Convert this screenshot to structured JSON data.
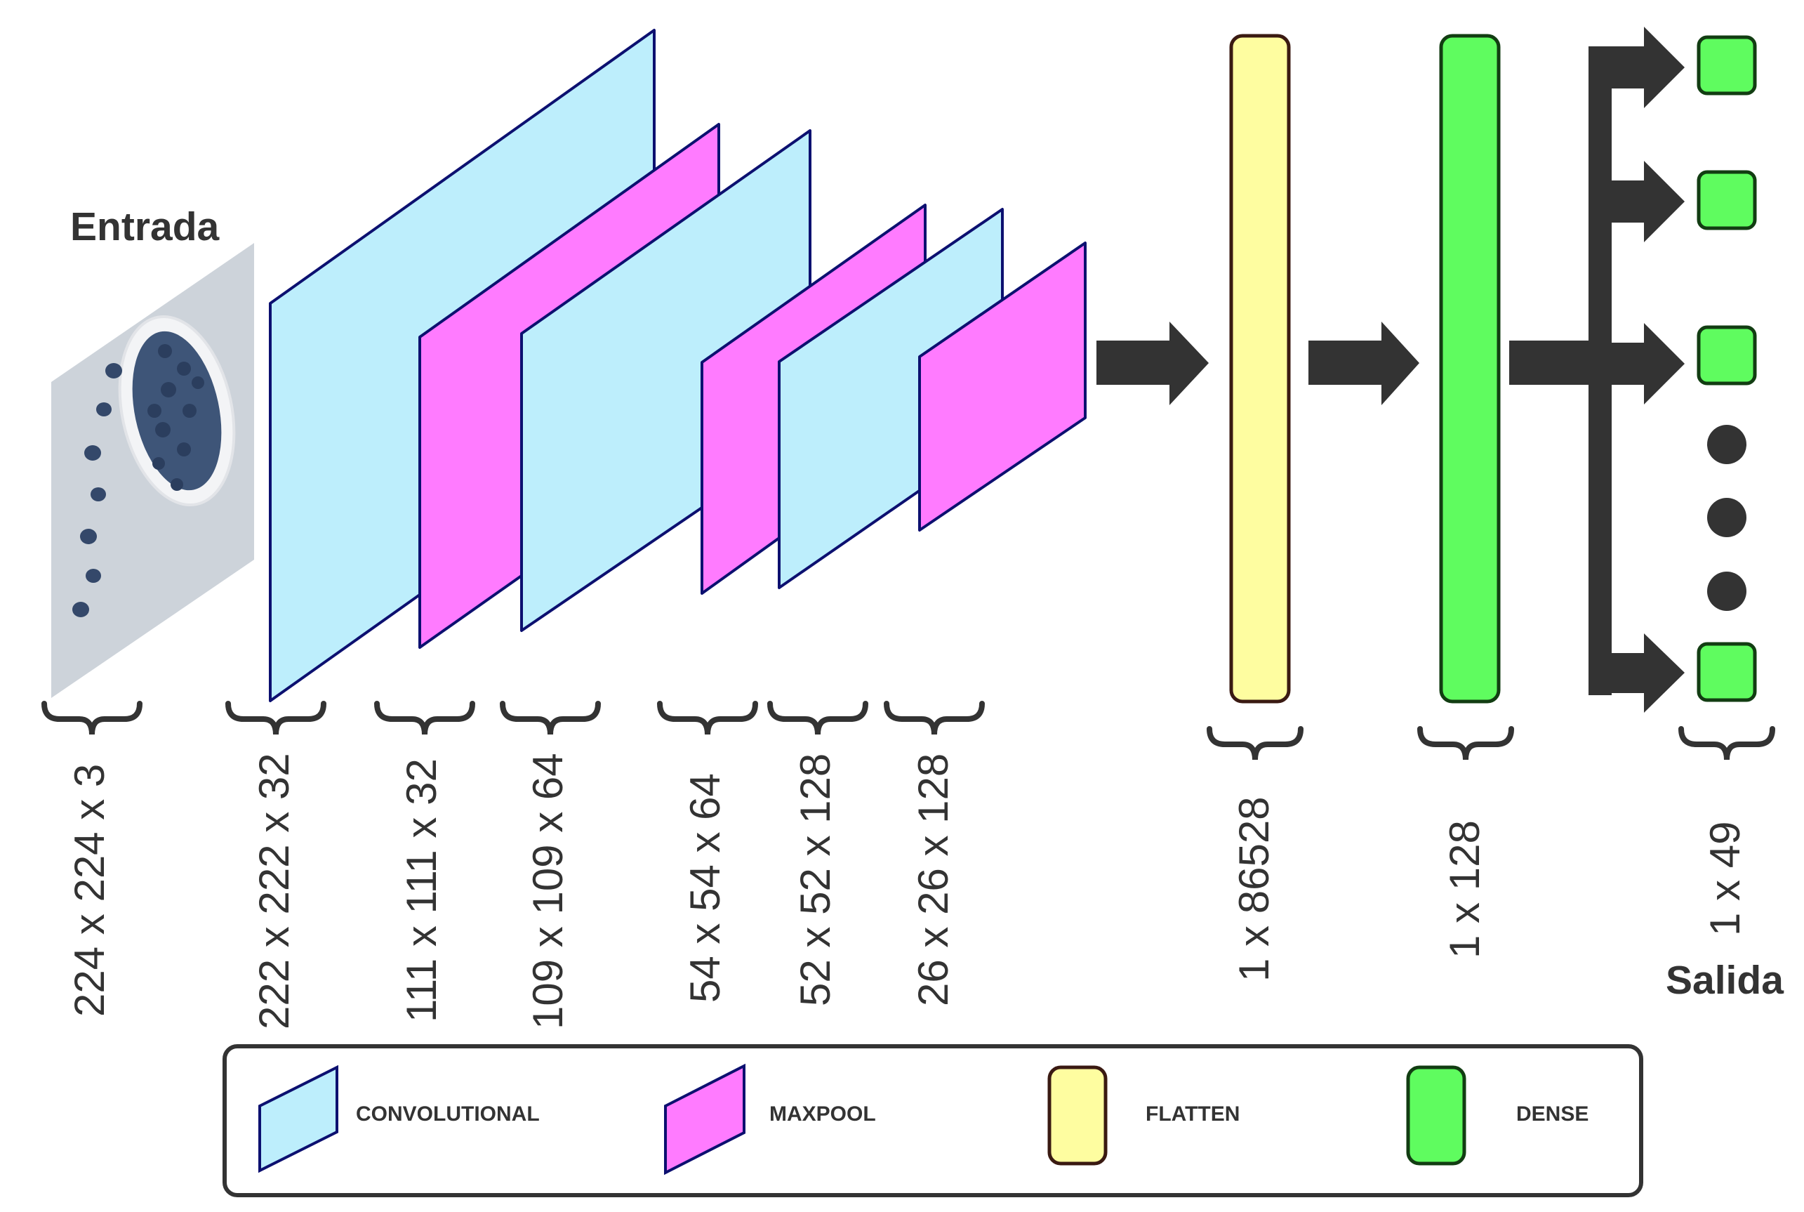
{
  "input_title": "Entrada",
  "output_title": "Salida",
  "dimensions": {
    "input": "224 x 224 x 3",
    "conv1": "222 x 222 x 32",
    "pool1": "111 x 111 x 32",
    "conv2": "109 x 109 x 64",
    "pool2": "54 x 54 x 64",
    "conv3": "52 x 52 x 128",
    "pool3": "26 x 26 x 128",
    "flatten": "1 x 86528",
    "dense": "1 x 128",
    "output": "1 x 49"
  },
  "legend": {
    "conv": "CONVOLUTIONAL",
    "pool": "MAXPOOL",
    "flatten": "FLATTEN",
    "dense": "DENSE"
  },
  "colors": {
    "convolutional": "#bdeefc",
    "maxpool": "#ff7bff",
    "flatten": "#fefda0",
    "dense": "#5ffc5f",
    "arrow": "#333333",
    "outline": "#0c1070"
  }
}
